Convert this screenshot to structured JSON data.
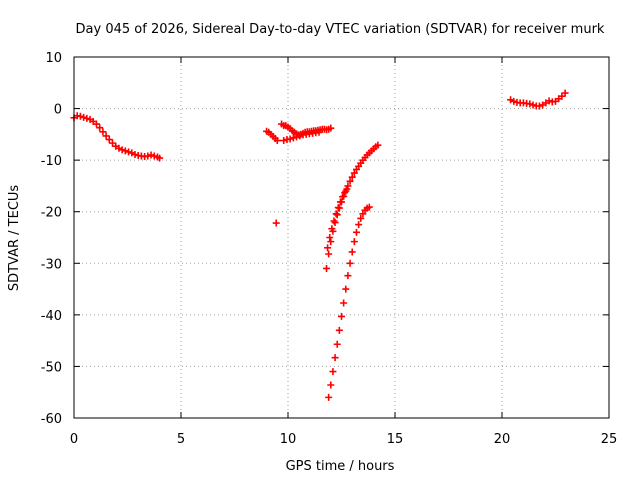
{
  "chart_data": {
    "type": "scatter",
    "title": "Day 045 of 2026, Sidereal Day-to-day VTEC variation (SDTVAR) for receiver murk",
    "xlabel": "GPS time / hours",
    "ylabel": "SDTVAR / TECUs",
    "xlim": [
      0,
      25
    ],
    "ylim": [
      -60,
      10
    ],
    "xticks": [
      "0",
      "5",
      "10",
      "15",
      "20",
      "25"
    ],
    "yticks": [
      "10",
      "0",
      "-10",
      "-20",
      "-30",
      "-40",
      "-50",
      "-60"
    ],
    "grid": true,
    "marker": "plus",
    "color": "#ff0000",
    "series": [
      {
        "x": [
          0.0,
          0.15,
          0.3,
          0.45,
          0.6,
          0.75,
          0.9,
          1.05,
          1.2,
          1.35,
          1.5,
          1.65,
          1.8,
          1.95,
          2.1,
          2.25,
          2.4,
          2.55,
          2.7,
          2.85,
          3.0,
          3.15,
          3.3,
          3.45,
          3.6,
          3.75,
          3.9,
          4.0
        ],
        "y": [
          -1.8,
          -1.4,
          -1.5,
          -1.7,
          -1.9,
          -2.1,
          -2.5,
          -3.0,
          -3.7,
          -4.5,
          -5.3,
          -6.0,
          -6.7,
          -7.3,
          -7.7,
          -8.0,
          -8.2,
          -8.4,
          -8.6,
          -8.9,
          -9.1,
          -9.2,
          -9.3,
          -9.2,
          -9.0,
          -9.2,
          -9.4,
          -9.6
        ]
      },
      {
        "x": [
          9.0,
          9.1,
          9.2,
          9.3,
          9.4,
          9.5
        ],
        "y": [
          -4.4,
          -4.6,
          -5.0,
          -5.4,
          -5.8,
          -6.2
        ]
      },
      {
        "x": [
          9.45
        ],
        "y": [
          -22.2
        ]
      },
      {
        "x": [
          9.7,
          9.8,
          9.9,
          10.0,
          10.1,
          10.2,
          10.3,
          10.4,
          10.5,
          10.6,
          10.7,
          10.8,
          10.9,
          11.0,
          11.1,
          11.2,
          11.3,
          11.4,
          11.5,
          11.6,
          11.7,
          11.8,
          11.9,
          12.0
        ],
        "y": [
          -3.0,
          -3.3,
          -3.3,
          -3.6,
          -3.9,
          -4.3,
          -4.6,
          -4.9,
          -5.1,
          -5.0,
          -4.8,
          -4.6,
          -4.5,
          -4.5,
          -4.4,
          -4.3,
          -4.3,
          -4.2,
          -4.1,
          -4.0,
          -4.0,
          -4.1,
          -4.0,
          -3.8
        ]
      },
      {
        "x": [
          9.8,
          9.95,
          10.1,
          10.25,
          10.4,
          10.55,
          10.7,
          10.85,
          11.0,
          11.15,
          11.3,
          11.45
        ],
        "y": [
          -6.2,
          -6.0,
          -5.9,
          -5.7,
          -5.5,
          -5.3,
          -5.1,
          -5.0,
          -4.9,
          -4.8,
          -4.7,
          -4.6
        ]
      },
      {
        "x": [
          11.8,
          11.9,
          12.0,
          12.1,
          12.2,
          12.3,
          12.4,
          12.5,
          12.6,
          12.7,
          12.8,
          12.9,
          13.0,
          13.1,
          13.2,
          13.3,
          13.4,
          13.5,
          13.6,
          13.7,
          13.8,
          13.9,
          14.0,
          14.1,
          14.2
        ],
        "y": [
          -31.0,
          -28.2,
          -25.8,
          -23.8,
          -22.1,
          -20.6,
          -19.3,
          -18.1,
          -17.0,
          -16.0,
          -15.0,
          -14.1,
          -13.3,
          -12.5,
          -11.8,
          -11.2,
          -10.6,
          -10.0,
          -9.5,
          -9.0,
          -8.6,
          -8.2,
          -7.8,
          -7.4,
          -7.1
        ]
      },
      {
        "x": [
          11.85,
          11.95,
          12.05,
          12.15,
          12.25,
          12.35,
          12.45,
          12.55,
          12.65,
          12.75
        ],
        "y": [
          -27.0,
          -25.0,
          -23.3,
          -21.8,
          -20.4,
          -19.2,
          -18.1,
          -17.1,
          -16.3,
          -15.6
        ]
      },
      {
        "x": [
          11.9,
          12.0,
          12.1,
          12.2,
          12.3,
          12.4,
          12.5,
          12.6,
          12.7,
          12.8,
          12.9,
          13.0,
          13.1,
          13.2,
          13.3,
          13.4,
          13.5,
          13.6,
          13.7,
          13.8
        ],
        "y": [
          -56.0,
          -53.6,
          -51.0,
          -48.3,
          -45.7,
          -43.0,
          -40.3,
          -37.7,
          -35.0,
          -32.4,
          -30.0,
          -27.8,
          -25.8,
          -24.0,
          -22.5,
          -21.3,
          -20.4,
          -19.7,
          -19.3,
          -19.1
        ]
      },
      {
        "x": [
          20.4,
          20.55,
          20.7,
          20.85,
          21.0,
          21.15,
          21.3,
          21.45,
          21.6,
          21.75,
          21.9,
          22.05,
          22.2,
          22.35,
          22.5,
          22.65,
          22.8,
          22.95
        ],
        "y": [
          1.7,
          1.4,
          1.2,
          1.1,
          1.1,
          1.0,
          0.9,
          0.7,
          0.5,
          0.5,
          0.7,
          1.1,
          1.5,
          1.3,
          1.4,
          1.9,
          2.4,
          3.0
        ]
      }
    ]
  }
}
